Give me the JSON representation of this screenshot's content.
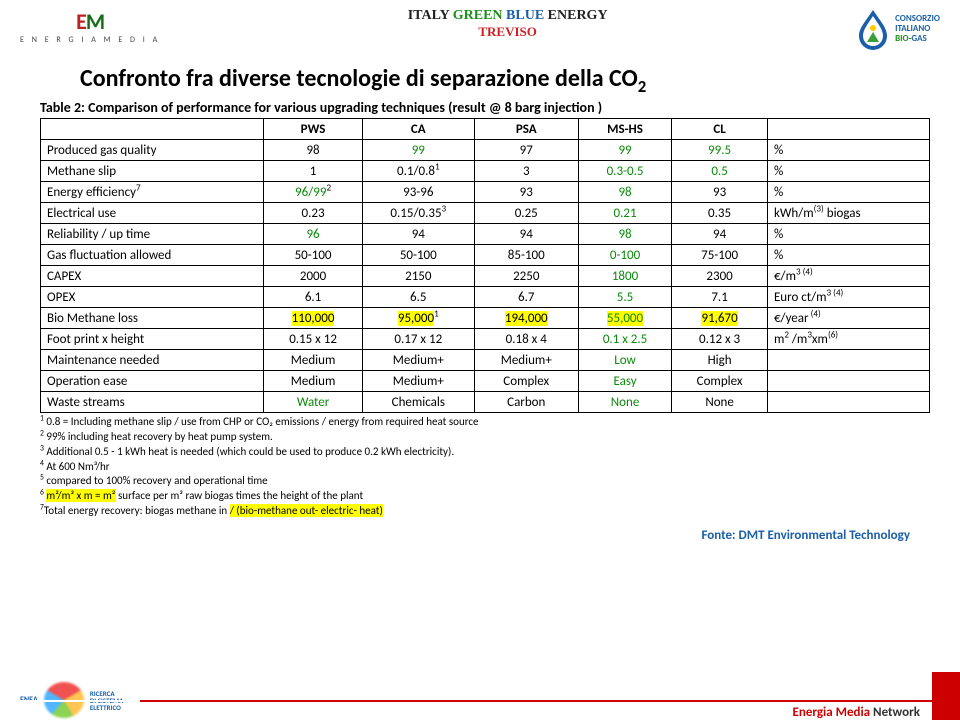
{
  "header": {
    "logo_left": {
      "e": "E",
      "m": "M",
      "sub": "E N E R G I A M E D I A"
    },
    "logo_center": {
      "italy": "ITALY",
      "green": "GREEN",
      "blue": "BLUE",
      "energy": "ENERGY",
      "city": "TREVISO"
    },
    "logo_right": {
      "l1": "CONSORZIO",
      "l2": "ITALIANO",
      "l3": "BIO-",
      "l4": "GAS"
    }
  },
  "title": "Confronto fra diverse tecnologie di separazione della CO",
  "title_sub": "2",
  "table": {
    "caption": "Table 2: Comparison of performance for various upgrading techniques (result @ 8 barg injection )",
    "columns": [
      "",
      "PWS",
      "CA",
      "PSA",
      "MS-HS",
      "CL",
      ""
    ],
    "rows": [
      {
        "label": "Produced gas quality",
        "vals": [
          {
            "t": "98"
          },
          {
            "t": "99",
            "cls": "green-txt"
          },
          {
            "t": "97"
          },
          {
            "t": "99",
            "cls": "green-txt"
          },
          {
            "t": "99.5",
            "cls": "green-txt"
          }
        ],
        "unit": "%"
      },
      {
        "label": "Methane slip",
        "vals": [
          {
            "t": "1"
          },
          {
            "t": "0.1/0.8",
            "sup": "1"
          },
          {
            "t": "3"
          },
          {
            "t": "0.3-0.5",
            "cls": "green-txt"
          },
          {
            "t": "0.5",
            "cls": "green-txt"
          }
        ],
        "unit": "%"
      },
      {
        "label": "Energy efficiency",
        "label_sup": "7",
        "vals": [
          {
            "t": "96/99",
            "sup": "2",
            "cls": "green-txt"
          },
          {
            "t": "93-96"
          },
          {
            "t": "93"
          },
          {
            "t": "98",
            "cls": "green-txt"
          },
          {
            "t": "93"
          }
        ],
        "unit": "%"
      },
      {
        "label": "Electrical use",
        "vals": [
          {
            "t": "0.23"
          },
          {
            "t": "0.15/0.35",
            "sup": "3"
          },
          {
            "t": "0.25"
          },
          {
            "t": "0.21",
            "cls": "green-txt"
          },
          {
            "t": "0.35"
          }
        ],
        "unit": "kWh/m",
        "unit_sup": "(3)",
        "unit_suffix": " biogas"
      },
      {
        "label": "Reliability / up time",
        "vals": [
          {
            "t": "96",
            "cls": "green-txt"
          },
          {
            "t": "94"
          },
          {
            "t": "94"
          },
          {
            "t": "98",
            "cls": "green-txt"
          },
          {
            "t": "94"
          }
        ],
        "unit": "%"
      },
      {
        "label": "Gas fluctuation allowed",
        "vals": [
          {
            "t": "50-100"
          },
          {
            "t": "50-100"
          },
          {
            "t": "85-100"
          },
          {
            "t": "0-100",
            "cls": "green-txt"
          },
          {
            "t": "75-100"
          }
        ],
        "unit": "%"
      },
      {
        "label": "CAPEX",
        "vals": [
          {
            "t": "2000"
          },
          {
            "t": "2150"
          },
          {
            "t": "2250"
          },
          {
            "t": "1800",
            "cls": "green-txt"
          },
          {
            "t": "2300"
          }
        ],
        "unit": "€/m",
        "unit_sup": "3 (4)"
      },
      {
        "label": "OPEX",
        "vals": [
          {
            "t": "6.1"
          },
          {
            "t": "6.5"
          },
          {
            "t": "6.7"
          },
          {
            "t": "5.5",
            "cls": "green-txt"
          },
          {
            "t": "7.1"
          }
        ],
        "unit": "Euro ct/m",
        "unit_sup": "3 (4)"
      },
      {
        "label": "Bio Methane loss",
        "vals": [
          {
            "t": "110,000",
            "hl": true
          },
          {
            "t": "95,000",
            "sup": "1",
            "hl": true
          },
          {
            "t": "194,000",
            "hl": true
          },
          {
            "t": "55,000",
            "cls": "green-txt",
            "hl": true
          },
          {
            "t": "91,670",
            "hl": true
          }
        ],
        "unit": "€/year",
        "unit_sup": " (4)"
      },
      {
        "label": "Foot print x height",
        "vals": [
          {
            "t": "0.15 x 12"
          },
          {
            "t": "0.17 x 12"
          },
          {
            "t": "0.18 x 4"
          },
          {
            "t": "0.1 x 2.5",
            "cls": "green-txt"
          },
          {
            "t": "0.12 x 3"
          }
        ],
        "unit": "m",
        "unit_complex": true
      },
      {
        "label": "Maintenance needed",
        "vals": [
          {
            "t": "Medium"
          },
          {
            "t": "Medium+"
          },
          {
            "t": "Medium+"
          },
          {
            "t": "Low",
            "cls": "green-txt"
          },
          {
            "t": "High"
          }
        ],
        "unit": ""
      },
      {
        "label": "Operation ease",
        "vals": [
          {
            "t": "Medium"
          },
          {
            "t": "Medium+"
          },
          {
            "t": "Complex"
          },
          {
            "t": "Easy",
            "cls": "green-txt"
          },
          {
            "t": "Complex"
          }
        ],
        "unit": ""
      },
      {
        "label": "Waste streams",
        "vals": [
          {
            "t": "Water",
            "cls": "green-txt"
          },
          {
            "t": "Chemicals"
          },
          {
            "t": "Carbon"
          },
          {
            "t": "None",
            "cls": "green-txt"
          },
          {
            "t": "None"
          }
        ],
        "unit": ""
      }
    ],
    "footnotes": [
      {
        "n": "1",
        "t": " 0.8 = Including methane slip / use from CHP or CO₂ emissions / energy from required heat source"
      },
      {
        "n": "2",
        "t": " 99% including heat recovery by heat pump system."
      },
      {
        "n": "3",
        "t": " Additional 0.5 - 1 kWh heat is needed (which could be used to produce 0.2 kWh electricity)."
      },
      {
        "n": "4",
        "t": " At 600 Nm³/hr"
      },
      {
        "n": "5",
        "t": " compared to 100% recovery and operational time"
      },
      {
        "n": "6",
        "hl": true,
        "pre": " ",
        "hlt": "m²/m³ x m = m²",
        "t": " surface per m³ raw biogas times the height of the plant"
      },
      {
        "n": "7",
        "t": "Total energy recovery: biogas methane in ",
        "hlt": "/ (bio-methane out- electric- heat)",
        "hl_after": true
      }
    ]
  },
  "source": "Fonte: DMT  Environmental Technology",
  "footer": {
    "brand1": "Energia Media",
    "brand2": " Network",
    "rds1": "RICERCA",
    "rds2": "DI SISTEMA",
    "rds3": "ELETTRICO",
    "enea": "ENEA"
  }
}
